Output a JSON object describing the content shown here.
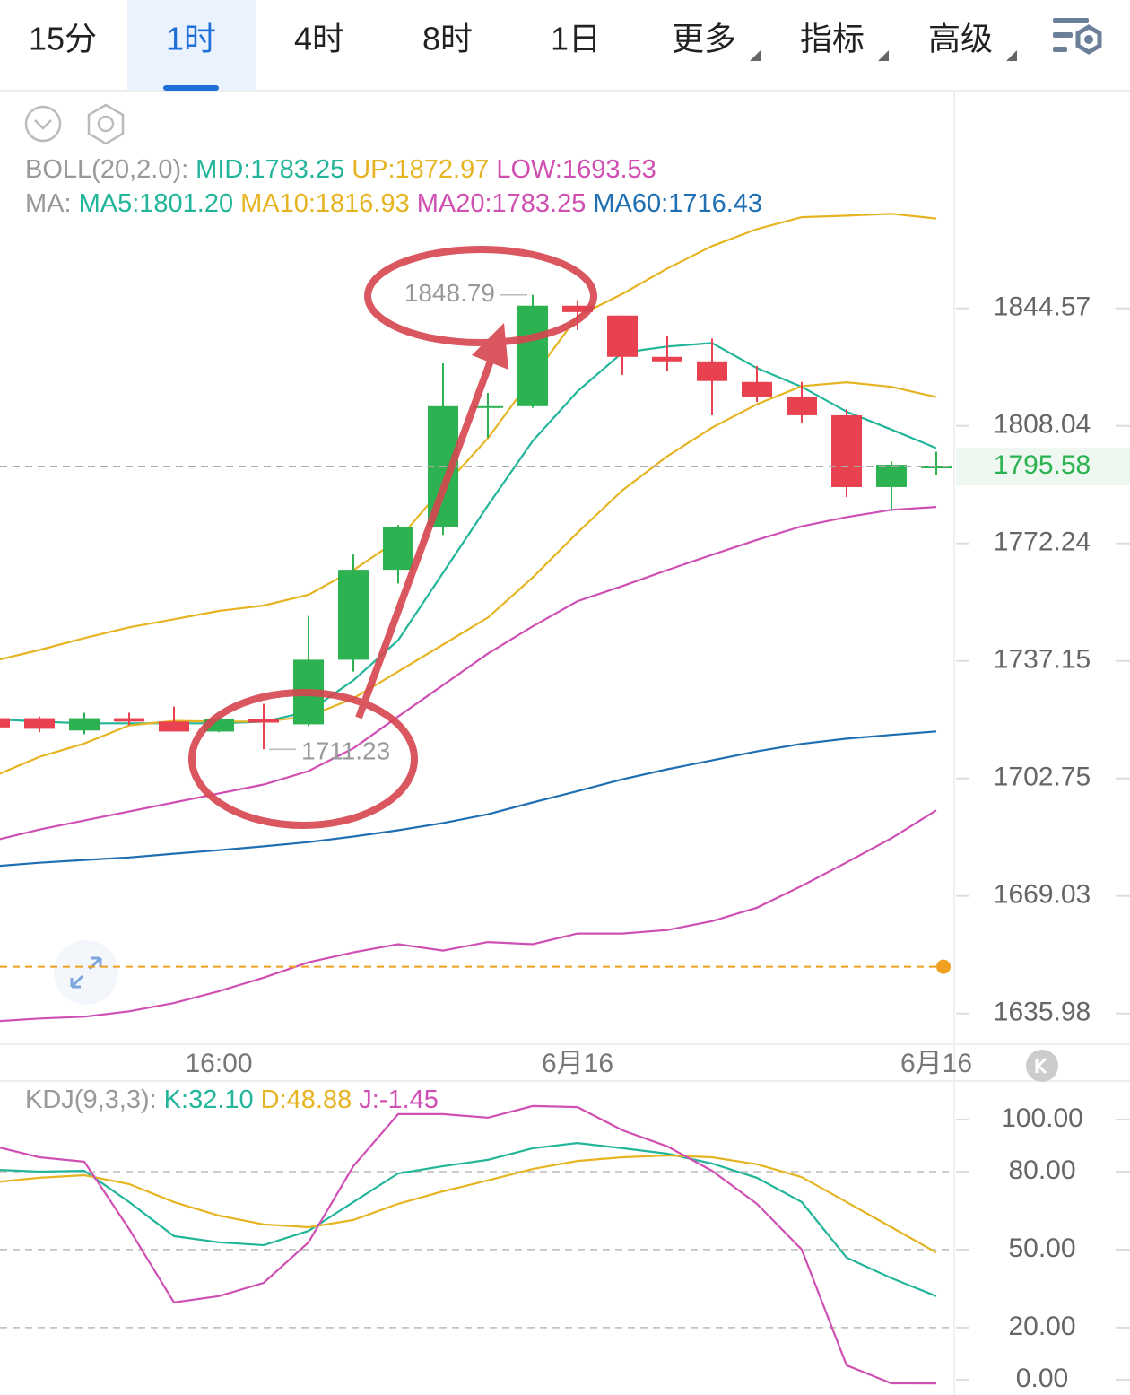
{
  "toolbar": {
    "tabs": [
      "15分",
      "1时",
      "4时",
      "8时",
      "1日",
      "更多",
      "指标",
      "高级"
    ],
    "active_tab": 1
  },
  "chart_data": [
    {
      "type": "candlestick",
      "log_scale": true,
      "ylim": [
        1627.7,
        1913.9
      ],
      "yticks": [
        1844.57,
        1808.04,
        1772.24,
        1737.15,
        1702.75,
        1669.03,
        1635.98
      ],
      "categories": [
        null,
        null,
        null,
        null,
        null,
        "16:00",
        null,
        null,
        null,
        null,
        null,
        null,
        null,
        "6月16",
        null,
        null,
        null,
        null,
        null,
        null,
        null,
        "6月16"
      ],
      "up_color": "#2db252",
      "down_color": "#e8414f",
      "candles": {
        "open": [
          1720.3,
          1720.3,
          1716.7,
          1720.3,
          1719.3,
          1716.4,
          1720.0,
          1718.5,
          1737.5,
          1764.3,
          1777.2,
          1813.9,
          1814.1,
          1845.4,
          1842.3,
          1829.4,
          1828.0,
          1821.6,
          1817.1,
          1811.3,
          1789.3,
          1795.58
        ],
        "high": [
          1721.0,
          1720.8,
          1721.9,
          1721.9,
          1723.7,
          1720.6,
          1724.5,
          1750.5,
          1768.9,
          1777.8,
          1827.4,
          1818.2,
          1848.79,
          1847.1,
          1842.3,
          1835.9,
          1835.1,
          1826.6,
          1821.6,
          1813.2,
          1797.2,
          1800.1
        ],
        "low": [
          1716.8,
          1716.2,
          1715.6,
          1718.3,
          1716.4,
          1716.2,
          1711.23,
          1718.0,
          1734.0,
          1760.2,
          1774.8,
          1804.4,
          1813.6,
          1837.8,
          1823.8,
          1824.9,
          1811.3,
          1815.4,
          1809.1,
          1786.3,
          1782.4,
          1793.0
        ],
        "close": [
          1717.6,
          1717.2,
          1720.3,
          1719.3,
          1716.4,
          1720.0,
          1719.0,
          1737.5,
          1764.3,
          1777.2,
          1814.1,
          1814.1,
          1845.4,
          1843.4,
          1829.4,
          1828.0,
          1821.9,
          1817.1,
          1811.3,
          1789.3,
          1796.1,
          1795.58
        ]
      },
      "high_label_index": 12,
      "low_label_index": 6,
      "lines": [
        {
          "color": "#e6b422",
          "values": [
            1737.2,
            1740.4,
            1743.9,
            1747.1,
            1749.5,
            1752.0,
            1753.6,
            1756.8,
            1764.2,
            1773.3,
            1789.2,
            1804.2,
            1823.1,
            1842.1,
            1849.1,
            1857.1,
            1864.2,
            1869.6,
            1873.4,
            1873.9,
            1874.5,
            1872.97
          ]
        },
        {
          "color": "#22b59a",
          "values": [
            1720.0,
            1719.3,
            1718.8,
            1718.8,
            1718.8,
            1718.8,
            1719.3,
            1722.2,
            1731.4,
            1743.3,
            1763.4,
            1783.7,
            1803.4,
            1818.7,
            1830.7,
            1832.6,
            1833.7,
            1825.9,
            1820.1,
            1812.4,
            1806.9,
            1801.2
          ]
        },
        {
          "color": "#e6b422",
          "values": [
            1703.5,
            1709.0,
            1712.9,
            1718.2,
            1719.5,
            1719.3,
            1719.3,
            1720.8,
            1726.1,
            1734.0,
            1742.0,
            1750.0,
            1762.0,
            1775.5,
            1788.3,
            1798.7,
            1807.5,
            1814.7,
            1820.3,
            1821.5,
            1820.1,
            1816.93
          ]
        },
        {
          "color": "#cf4fb3",
          "values": [
            1684.9,
            1688.0,
            1690.6,
            1693.2,
            1695.8,
            1698.4,
            1701.0,
            1704.9,
            1711.5,
            1720.8,
            1730.0,
            1739.3,
            1747.4,
            1754.9,
            1759.4,
            1764.2,
            1768.8,
            1773.3,
            1777.4,
            1780.2,
            1782.4,
            1783.25
          ]
        },
        {
          "color": "#1f6fb2",
          "values": [
            1677.5,
            1678.5,
            1679.3,
            1680.0,
            1681.1,
            1682.1,
            1683.2,
            1684.4,
            1686.0,
            1687.8,
            1689.9,
            1692.4,
            1695.8,
            1699.1,
            1702.5,
            1705.4,
            1708.0,
            1710.6,
            1712.8,
            1714.3,
            1715.4,
            1716.43
          ]
        },
        {
          "color": "#cf4fb3",
          "values": [
            1633.8,
            1634.6,
            1635.1,
            1636.6,
            1638.9,
            1642.2,
            1646.0,
            1650.3,
            1653.1,
            1655.4,
            1653.6,
            1656.0,
            1655.4,
            1658.4,
            1658.4,
            1659.4,
            1661.9,
            1665.7,
            1671.9,
            1678.6,
            1685.5,
            1693.53
          ]
        }
      ],
      "alert_line": {
        "value": 1649.05,
        "color": "#f0a020"
      },
      "indicators": [
        [
          {
            "text": "BOLL(20,2.0):",
            "color": "#999999"
          },
          {
            "text": "MID:1783.25",
            "color": "#22b59a"
          },
          {
            "text": "UP:1872.97",
            "color": "#e6b422"
          },
          {
            "text": "LOW:1693.53",
            "color": "#cf4fb3"
          }
        ],
        [
          {
            "text": "MA:",
            "color": "#999999"
          },
          {
            "text": "MA5:1801.20",
            "color": "#22b59a"
          },
          {
            "text": "MA10:1816.93",
            "color": "#e6b422"
          },
          {
            "text": "MA20:1783.25",
            "color": "#cf4fb3"
          },
          {
            "text": "MA60:1716.43",
            "color": "#1f6fb2"
          }
        ]
      ]
    },
    {
      "type": "line",
      "ylim": [
        -5.9,
        113.1
      ],
      "yticks": [
        {
          "value": 100,
          "label": "100.00"
        },
        {
          "value": 80,
          "label": "80.00"
        },
        {
          "value": 50,
          "label": "50.00"
        },
        {
          "value": 20,
          "label": "20.00"
        },
        {
          "value": 0,
          "label": "0.00"
        }
      ],
      "series": [
        {
          "color": "#22b59a",
          "values": [
            80.7,
            80.0,
            80.3,
            68.3,
            55.2,
            52.8,
            51.7,
            57.2,
            68.3,
            79.3,
            82.1,
            84.5,
            89.0,
            91.0,
            89.0,
            86.9,
            83.1,
            77.6,
            68.3,
            46.9,
            39.0,
            32.1
          ]
        },
        {
          "color": "#e6b422",
          "values": [
            75.9,
            77.6,
            78.6,
            75.2,
            68.3,
            63.1,
            59.7,
            58.6,
            61.4,
            67.6,
            72.4,
            76.6,
            81.0,
            84.1,
            85.5,
            86.2,
            85.5,
            82.8,
            77.9,
            68.3,
            58.6,
            48.88
          ]
        },
        {
          "color": "#cf4fb3",
          "values": [
            89.7,
            85.5,
            83.8,
            57.9,
            29.7,
            32.1,
            37.2,
            52.8,
            82.1,
            102.1,
            102.1,
            100.7,
            105.2,
            104.8,
            95.9,
            89.7,
            80.3,
            67.6,
            50.0,
            5.5,
            -1.4,
            -1.45
          ]
        }
      ],
      "indicators": [
        [
          {
            "text": "KDJ(9,3,3):",
            "color": "#999999"
          },
          {
            "text": "K:32.10",
            "color": "#22b59a"
          },
          {
            "text": "D:48.88",
            "color": "#e6b422"
          },
          {
            "text": "J:-1.45",
            "color": "#cf4fb3"
          }
        ]
      ]
    }
  ]
}
